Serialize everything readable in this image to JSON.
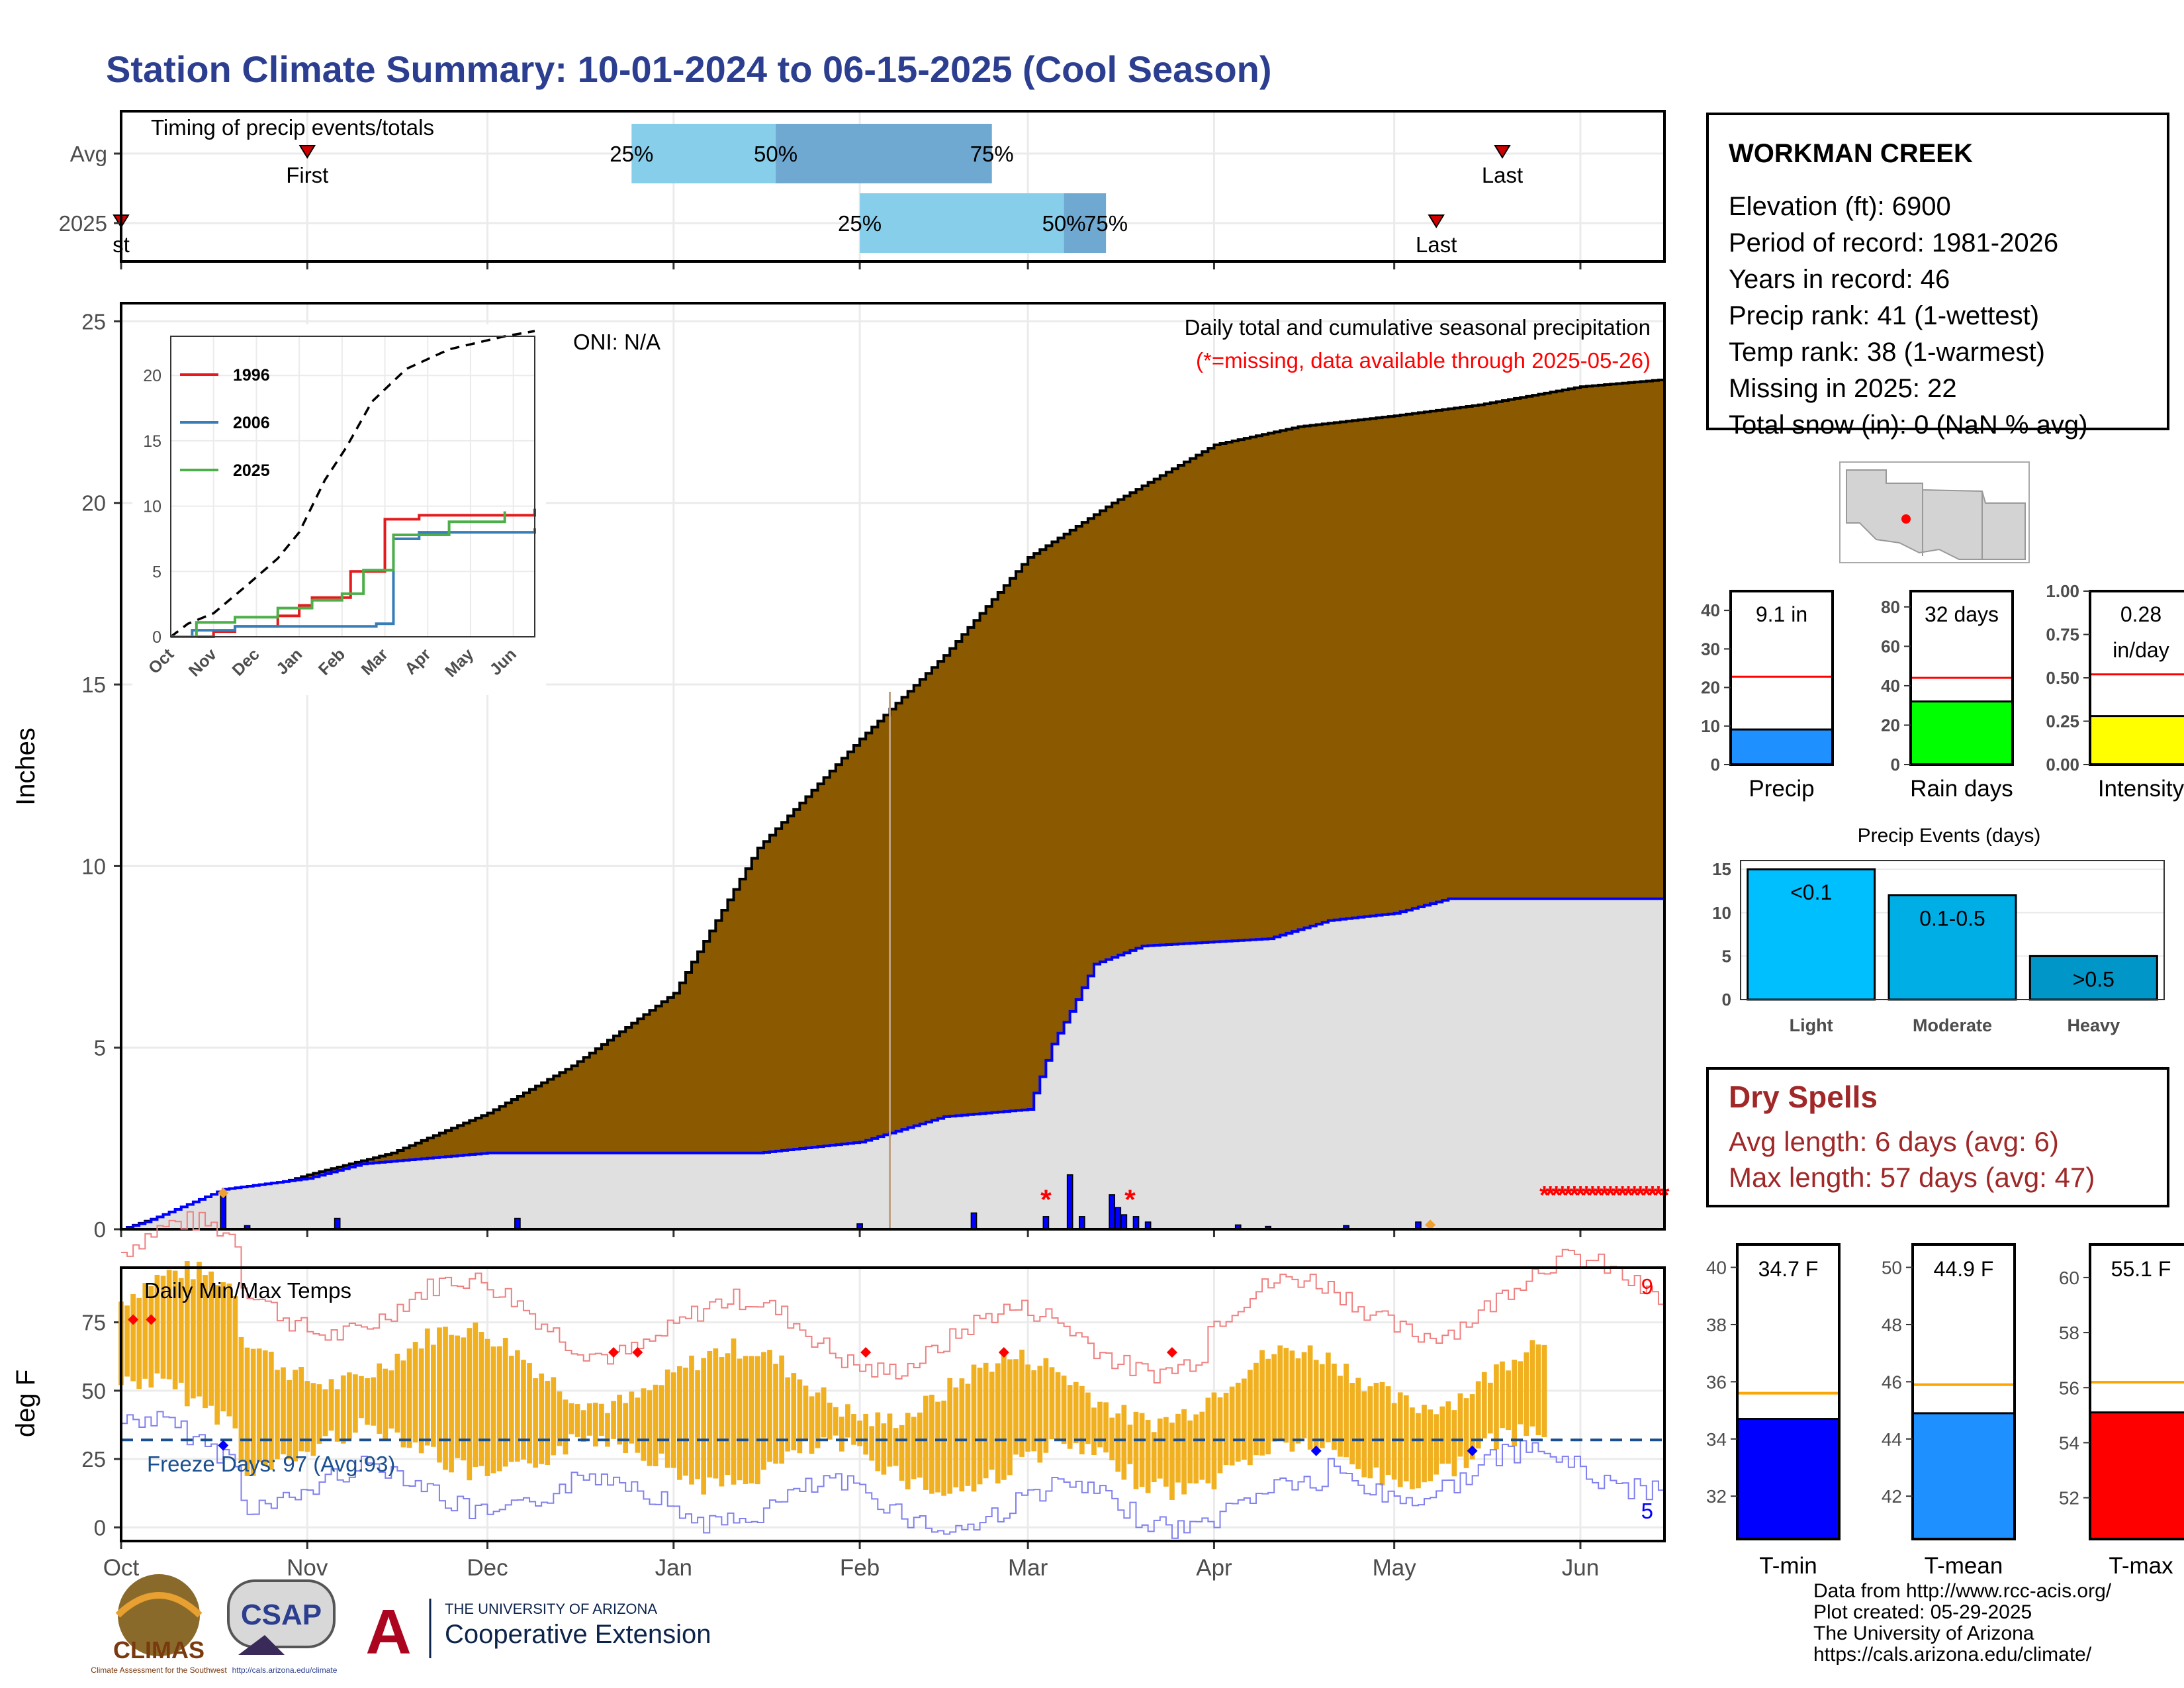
{
  "title": "Station Climate Summary: 10-01-2024 to 06-15-2025 (Cool Season)",
  "colors": {
    "title": "#2c3e8f",
    "cum": "#8b5a00",
    "current_fill": "#e0e0e0",
    "current_line": "#0000ff",
    "q_light": "#87ceeb",
    "q_dark": "#6fa8d0",
    "temp_bar": "#f0b020",
    "freeze": "#1a4f8f",
    "dry": "#a02828"
  },
  "timing": {
    "label": "Timing of precip events/totals",
    "rows": [
      "Avg",
      "2025"
    ],
    "avg": {
      "first_label": "First",
      "first_date": "2024-11-01",
      "last_label": "Last",
      "last_date": "2025-05-19",
      "q25_label": "25%",
      "q25": "2024-12-25",
      "q50_label": "50%",
      "q50": "2025-01-18",
      "q75_label": "75%",
      "q75": "2025-02-23"
    },
    "y2025": {
      "first_label": "st",
      "first_date": "2024-10-01",
      "last_label": "Last",
      "last_date": "2025-05-08",
      "q25_label": "25%",
      "q25": "2025-02-01",
      "q50_label": "50%",
      "q50": "2025-03-07",
      "q75_label": "75%",
      "q75": "2025-03-14"
    }
  },
  "x_axis": {
    "ticks": [
      "Oct",
      "Nov",
      "Dec",
      "Jan",
      "Feb",
      "Mar",
      "Apr",
      "May",
      "Jun"
    ],
    "tick_dates": [
      "2024-10-01",
      "2024-11-01",
      "2024-12-01",
      "2025-01-01",
      "2025-02-01",
      "2025-03-01",
      "2025-04-01",
      "2025-05-01",
      "2025-06-01"
    ],
    "start": "2024-10-01",
    "end": "2025-06-15"
  },
  "precip_chart": {
    "ylabel": "Inches",
    "ylim": [
      0,
      25.5
    ],
    "yticks": [
      0,
      5,
      10,
      15,
      20,
      25
    ],
    "title": "Daily total and cumulative seasonal precipitation",
    "subtitle": "(*=missing, data available through 2025-05-26)",
    "oni": "ONI: N/A",
    "missing_marker": "*",
    "cumulative_avg": [
      [
        "2024-10-01",
        0
      ],
      [
        "2024-10-10",
        0.5
      ],
      [
        "2024-10-20",
        0.9
      ],
      [
        "2024-11-01",
        1.5
      ],
      [
        "2024-11-15",
        2.1
      ],
      [
        "2024-12-01",
        3.2
      ],
      [
        "2024-12-15",
        4.5
      ],
      [
        "2025-01-01",
        6.5
      ],
      [
        "2025-01-15",
        10.5
      ],
      [
        "2025-02-01",
        13.5
      ],
      [
        "2025-02-15",
        15.8
      ],
      [
        "2025-03-01",
        18.5
      ],
      [
        "2025-03-15",
        20.0
      ],
      [
        "2025-04-01",
        21.6
      ],
      [
        "2025-04-15",
        22.1
      ],
      [
        "2025-05-01",
        22.4
      ],
      [
        "2025-05-15",
        22.7
      ],
      [
        "2025-06-01",
        23.2
      ],
      [
        "2025-06-15",
        23.4
      ]
    ],
    "cumulative_2025": [
      [
        "2024-10-01",
        0
      ],
      [
        "2024-10-05",
        0.2
      ],
      [
        "2024-10-18",
        1.1
      ],
      [
        "2024-11-01",
        1.4
      ],
      [
        "2024-11-10",
        1.8
      ],
      [
        "2024-12-01",
        2.1
      ],
      [
        "2025-01-15",
        2.1
      ],
      [
        "2025-02-01",
        2.4
      ],
      [
        "2025-02-15",
        3.1
      ],
      [
        "2025-03-01",
        3.3
      ],
      [
        "2025-03-05",
        5.1
      ],
      [
        "2025-03-08",
        6.0
      ],
      [
        "2025-03-12",
        7.3
      ],
      [
        "2025-03-20",
        7.8
      ],
      [
        "2025-04-10",
        8.0
      ],
      [
        "2025-04-20",
        8.5
      ],
      [
        "2025-05-01",
        8.7
      ],
      [
        "2025-05-10",
        9.1
      ],
      [
        "2025-06-15",
        9.1
      ]
    ],
    "daily_2025": [
      [
        "2024-10-18",
        1.0
      ],
      [
        "2024-10-22",
        0.1
      ],
      [
        "2024-11-06",
        0.3
      ],
      [
        "2024-12-06",
        0.3
      ],
      [
        "2025-02-01",
        0.15
      ],
      [
        "2025-02-20",
        0.45
      ],
      [
        "2025-03-04",
        0.35
      ],
      [
        "2025-03-08",
        1.5
      ],
      [
        "2025-03-10",
        0.35
      ],
      [
        "2025-03-15",
        0.95
      ],
      [
        "2025-03-16",
        0.6
      ],
      [
        "2025-03-17",
        0.4
      ],
      [
        "2025-03-19",
        0.35
      ],
      [
        "2025-03-21",
        0.2
      ],
      [
        "2025-04-05",
        0.12
      ],
      [
        "2025-04-10",
        0.08
      ],
      [
        "2025-04-23",
        0.1
      ],
      [
        "2025-05-05",
        0.2
      ]
    ],
    "missing_days": [
      "2025-03-04",
      "2025-03-18"
    ],
    "missing_range": [
      "2025-05-26",
      "2025-06-15"
    ]
  },
  "inset": {
    "ylim": [
      0,
      23
    ],
    "yticks": [
      0,
      5,
      10,
      15,
      20
    ],
    "xticks": [
      "Oct",
      "Nov",
      "Dec",
      "Jan",
      "Feb",
      "Mar",
      "Apr",
      "May",
      "Jun"
    ],
    "series": [
      {
        "name": "1996",
        "color": "#e41a1c",
        "points": [
          [
            0,
            0
          ],
          [
            1,
            0.4
          ],
          [
            1.5,
            0.8
          ],
          [
            2.5,
            1.6
          ],
          [
            3.0,
            2.4
          ],
          [
            3.3,
            3.0
          ],
          [
            4.2,
            5.0
          ],
          [
            5.0,
            9.0
          ],
          [
            5.8,
            9.3
          ],
          [
            8.5,
            9.8
          ]
        ]
      },
      {
        "name": "2006",
        "color": "#377eb8",
        "points": [
          [
            0,
            0
          ],
          [
            0.5,
            0.5
          ],
          [
            1.5,
            0.8
          ],
          [
            4.8,
            1.0
          ],
          [
            5.2,
            7.5
          ],
          [
            5.8,
            8.0
          ],
          [
            8.5,
            8.3
          ]
        ]
      },
      {
        "name": "2025",
        "color": "#4daf4a",
        "points": [
          [
            0,
            0
          ],
          [
            0.6,
            1.1
          ],
          [
            1.5,
            1.5
          ],
          [
            2.5,
            2.2
          ],
          [
            3.3,
            2.8
          ],
          [
            4.0,
            3.3
          ],
          [
            4.5,
            5.1
          ],
          [
            5.2,
            7.8
          ],
          [
            6.5,
            8.8
          ],
          [
            7.8,
            9.6
          ]
        ]
      }
    ],
    "avg_points": [
      [
        0,
        0
      ],
      [
        0.4,
        1.0
      ],
      [
        1.0,
        1.8
      ],
      [
        1.8,
        4.0
      ],
      [
        2.5,
        6.0
      ],
      [
        3.0,
        8.0
      ],
      [
        3.6,
        12.0
      ],
      [
        4.1,
        14.5
      ],
      [
        4.7,
        18.0
      ],
      [
        5.5,
        20.5
      ],
      [
        6.5,
        22.0
      ],
      [
        7.8,
        23.0
      ],
      [
        8.5,
        23.4
      ]
    ]
  },
  "temp_chart": {
    "ylabel": "deg F",
    "ylim": [
      -5,
      95
    ],
    "yticks": [
      0,
      25,
      50,
      75
    ],
    "title": "Daily Min/Max Temps",
    "freeze_label": "Freeze Days: 97 (Avg:93)",
    "freeze_value": 32,
    "max_count_label": "9",
    "min_count_label": "5",
    "record_high_dates": [
      "2024-10-03",
      "2024-10-06",
      "2024-12-22",
      "2024-12-26",
      "2025-02-02",
      "2025-02-25",
      "2025-03-25"
    ],
    "record_low_dates": [
      "2024-10-18",
      "2025-04-18",
      "2025-05-14"
    ]
  },
  "station": {
    "name": "WORKMAN CREEK",
    "lines": [
      "Elevation (ft): 6900",
      "Period of record: 1981-2026",
      "Years in record: 46",
      "Precip rank: 41 (1-wettest)",
      "Temp rank: 38 (1-warmest)",
      "Missing in 2025: 22",
      "Total snow (in): 0 (NaN % avg)"
    ]
  },
  "mini_bars": [
    {
      "name": "Precip",
      "value": 9.1,
      "label_line1": "9.1 in",
      "label_line2": "",
      "avg": 22.8,
      "ylim": [
        0,
        45
      ],
      "yticks": [
        "0",
        "10",
        "20",
        "30",
        "40"
      ],
      "ytickvals": [
        0,
        10,
        20,
        30,
        40
      ],
      "color": "#1e90ff"
    },
    {
      "name": "Rain days",
      "value": 32,
      "label_line1": "32 days",
      "label_line2": "",
      "avg": 44,
      "ylim": [
        0,
        88
      ],
      "yticks": [
        "0",
        "20",
        "40",
        "60",
        "80"
      ],
      "ytickvals": [
        0,
        20,
        40,
        60,
        80
      ],
      "color": "#00ff00"
    },
    {
      "name": "Intensity",
      "value": 0.28,
      "label_line1": "0.28",
      "label_line2": "in/day",
      "avg": 0.52,
      "ylim": [
        0,
        1.0
      ],
      "yticks": [
        "0.00",
        "0.25",
        "0.50",
        "0.75",
        "1.00"
      ],
      "ytickvals": [
        0,
        0.25,
        0.5,
        0.75,
        1.0
      ],
      "color": "#ffff00"
    }
  ],
  "events": {
    "title": "Precip Events (days)",
    "categories": [
      "Light",
      "Moderate",
      "Heavy"
    ],
    "bar_labels": [
      "<0.1",
      "0.1-0.5",
      ">0.5"
    ],
    "values": [
      15,
      12,
      5
    ],
    "colors": [
      "#00bfff",
      "#00aee6",
      "#0096c8"
    ],
    "ylim": [
      0,
      16
    ],
    "yticks": [
      0,
      5,
      10,
      15
    ]
  },
  "dry_spells": {
    "title": "Dry Spells",
    "avg_line": "Avg length: 6 days (avg: 6)",
    "max_line": "Max length: 57 days (avg: 47)"
  },
  "temp_bars": [
    {
      "name": "T-min",
      "value": 34.7,
      "label": "34.7 F",
      "avg": 35.6,
      "ylim": [
        30.5,
        40.8
      ],
      "ytickvals": [
        32,
        34,
        36,
        38,
        40
      ],
      "color": "#0000ff"
    },
    {
      "name": "T-mean",
      "value": 44.9,
      "label": "44.9 F",
      "avg": 45.9,
      "ylim": [
        40.5,
        50.8
      ],
      "ytickvals": [
        42,
        44,
        46,
        48,
        50
      ],
      "color": "#1e90ff"
    },
    {
      "name": "T-max",
      "value": 55.1,
      "label": "55.1 F",
      "avg": 56.2,
      "ylim": [
        50.5,
        61.2
      ],
      "ytickvals": [
        52,
        54,
        56,
        58,
        60
      ],
      "color": "#ff0000"
    }
  ],
  "credits": [
    "Data from http://www.rcc-acis.org/",
    "Plot created: 05-29-2025",
    "The University of Arizona",
    "https://cals.arizona.edu/climate/"
  ],
  "logos": {
    "climas": "CLIMAS",
    "climas_sub": "Climate Assessment for the Southwest",
    "csap": "CSAP",
    "csap_url": "http://cals.arizona.edu/climate",
    "ua_top": "THE UNIVERSITY OF ARIZONA",
    "ua_bottom": "Cooperative Extension"
  }
}
